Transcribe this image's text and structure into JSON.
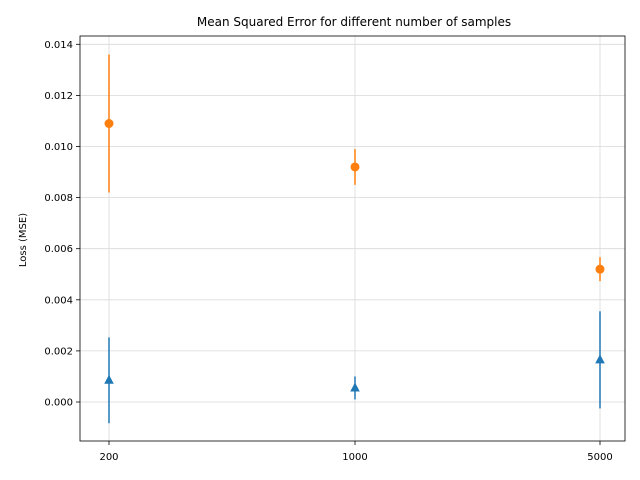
{
  "chart_data": {
    "type": "scatter",
    "title": "Mean Squared Error for different number of samples",
    "xlabel": "",
    "ylabel": "Loss (MSE)",
    "categories": [
      "200",
      "1000",
      "5000"
    ],
    "ylim": [
      -0.00135,
      0.0144
    ],
    "yticks": [
      "0.000",
      "0.002",
      "0.004",
      "0.006",
      "0.008",
      "0.010",
      "0.012",
      "0.014"
    ],
    "ytick_values": [
      0,
      0.002,
      0.004,
      0.006,
      0.008,
      0.01,
      0.012,
      0.014
    ],
    "grid": true,
    "legend": "none",
    "series": [
      {
        "color": "#ff7f0e",
        "marker": "circle",
        "values": [
          0.0109,
          0.0092,
          0.0052
        ],
        "error": [
          0.0027,
          0.0007,
          0.00047
        ]
      },
      {
        "color": "#1f77b4",
        "marker": "triangle",
        "values": [
          0.00085,
          0.00055,
          0.00165
        ],
        "error": [
          0.00168,
          0.00045,
          0.0019
        ]
      }
    ]
  }
}
